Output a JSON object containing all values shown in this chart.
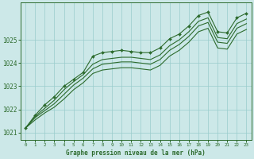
{
  "title": "Graphe pression niveau de la mer (hPa)",
  "bg_color": "#cce8e8",
  "grid_color": "#99cccc",
  "line_color": "#2d6b2d",
  "xlim": [
    -0.5,
    23.5
  ],
  "ylim": [
    1020.7,
    1026.6
  ],
  "yticks": [
    1021,
    1022,
    1023,
    1024,
    1025
  ],
  "xticks": [
    0,
    1,
    2,
    3,
    4,
    5,
    6,
    7,
    8,
    9,
    10,
    11,
    12,
    13,
    14,
    15,
    16,
    17,
    18,
    19,
    20,
    21,
    22,
    23
  ],
  "series": [
    {
      "x": [
        0,
        1,
        2,
        3,
        4,
        5,
        6,
        7,
        8,
        9,
        10,
        11,
        12,
        13,
        14,
        15,
        16,
        17,
        18,
        19,
        20,
        21,
        22,
        23
      ],
      "y": [
        1021.2,
        1021.75,
        1022.2,
        1022.55,
        1023.0,
        1023.3,
        1023.6,
        1024.3,
        1024.45,
        1024.5,
        1024.55,
        1024.5,
        1024.45,
        1024.45,
        1024.65,
        1025.05,
        1025.25,
        1025.6,
        1026.05,
        1026.2,
        1025.35,
        1025.3,
        1025.95,
        1026.15
      ],
      "has_markers": true
    },
    {
      "x": [
        0,
        1,
        2,
        3,
        4,
        5,
        6,
        7,
        8,
        9,
        10,
        11,
        12,
        13,
        14,
        15,
        16,
        17,
        18,
        19,
        20,
        21,
        22,
        23
      ],
      "y": [
        1021.2,
        1021.7,
        1022.05,
        1022.4,
        1022.85,
        1023.2,
        1023.5,
        1023.95,
        1024.15,
        1024.2,
        1024.25,
        1024.25,
        1024.2,
        1024.15,
        1024.35,
        1024.75,
        1025.0,
        1025.35,
        1025.8,
        1025.95,
        1025.1,
        1025.05,
        1025.7,
        1025.9
      ],
      "has_markers": false
    },
    {
      "x": [
        0,
        1,
        2,
        3,
        4,
        5,
        6,
        7,
        8,
        9,
        10,
        11,
        12,
        13,
        14,
        15,
        16,
        17,
        18,
        19,
        20,
        21,
        22,
        23
      ],
      "y": [
        1021.2,
        1021.65,
        1021.95,
        1022.25,
        1022.65,
        1023.05,
        1023.35,
        1023.75,
        1023.95,
        1024.0,
        1024.05,
        1024.05,
        1024.0,
        1023.95,
        1024.15,
        1024.55,
        1024.8,
        1025.15,
        1025.6,
        1025.75,
        1024.9,
        1024.85,
        1025.5,
        1025.7
      ],
      "has_markers": false
    },
    {
      "x": [
        0,
        1,
        2,
        3,
        4,
        5,
        6,
        7,
        8,
        9,
        10,
        11,
        12,
        13,
        14,
        15,
        16,
        17,
        18,
        19,
        20,
        21,
        22,
        23
      ],
      "y": [
        1021.2,
        1021.55,
        1021.85,
        1022.1,
        1022.45,
        1022.85,
        1023.15,
        1023.55,
        1023.7,
        1023.75,
        1023.8,
        1023.8,
        1023.75,
        1023.7,
        1023.9,
        1024.3,
        1024.55,
        1024.9,
        1025.35,
        1025.5,
        1024.65,
        1024.6,
        1025.25,
        1025.45
      ],
      "has_markers": false
    }
  ]
}
